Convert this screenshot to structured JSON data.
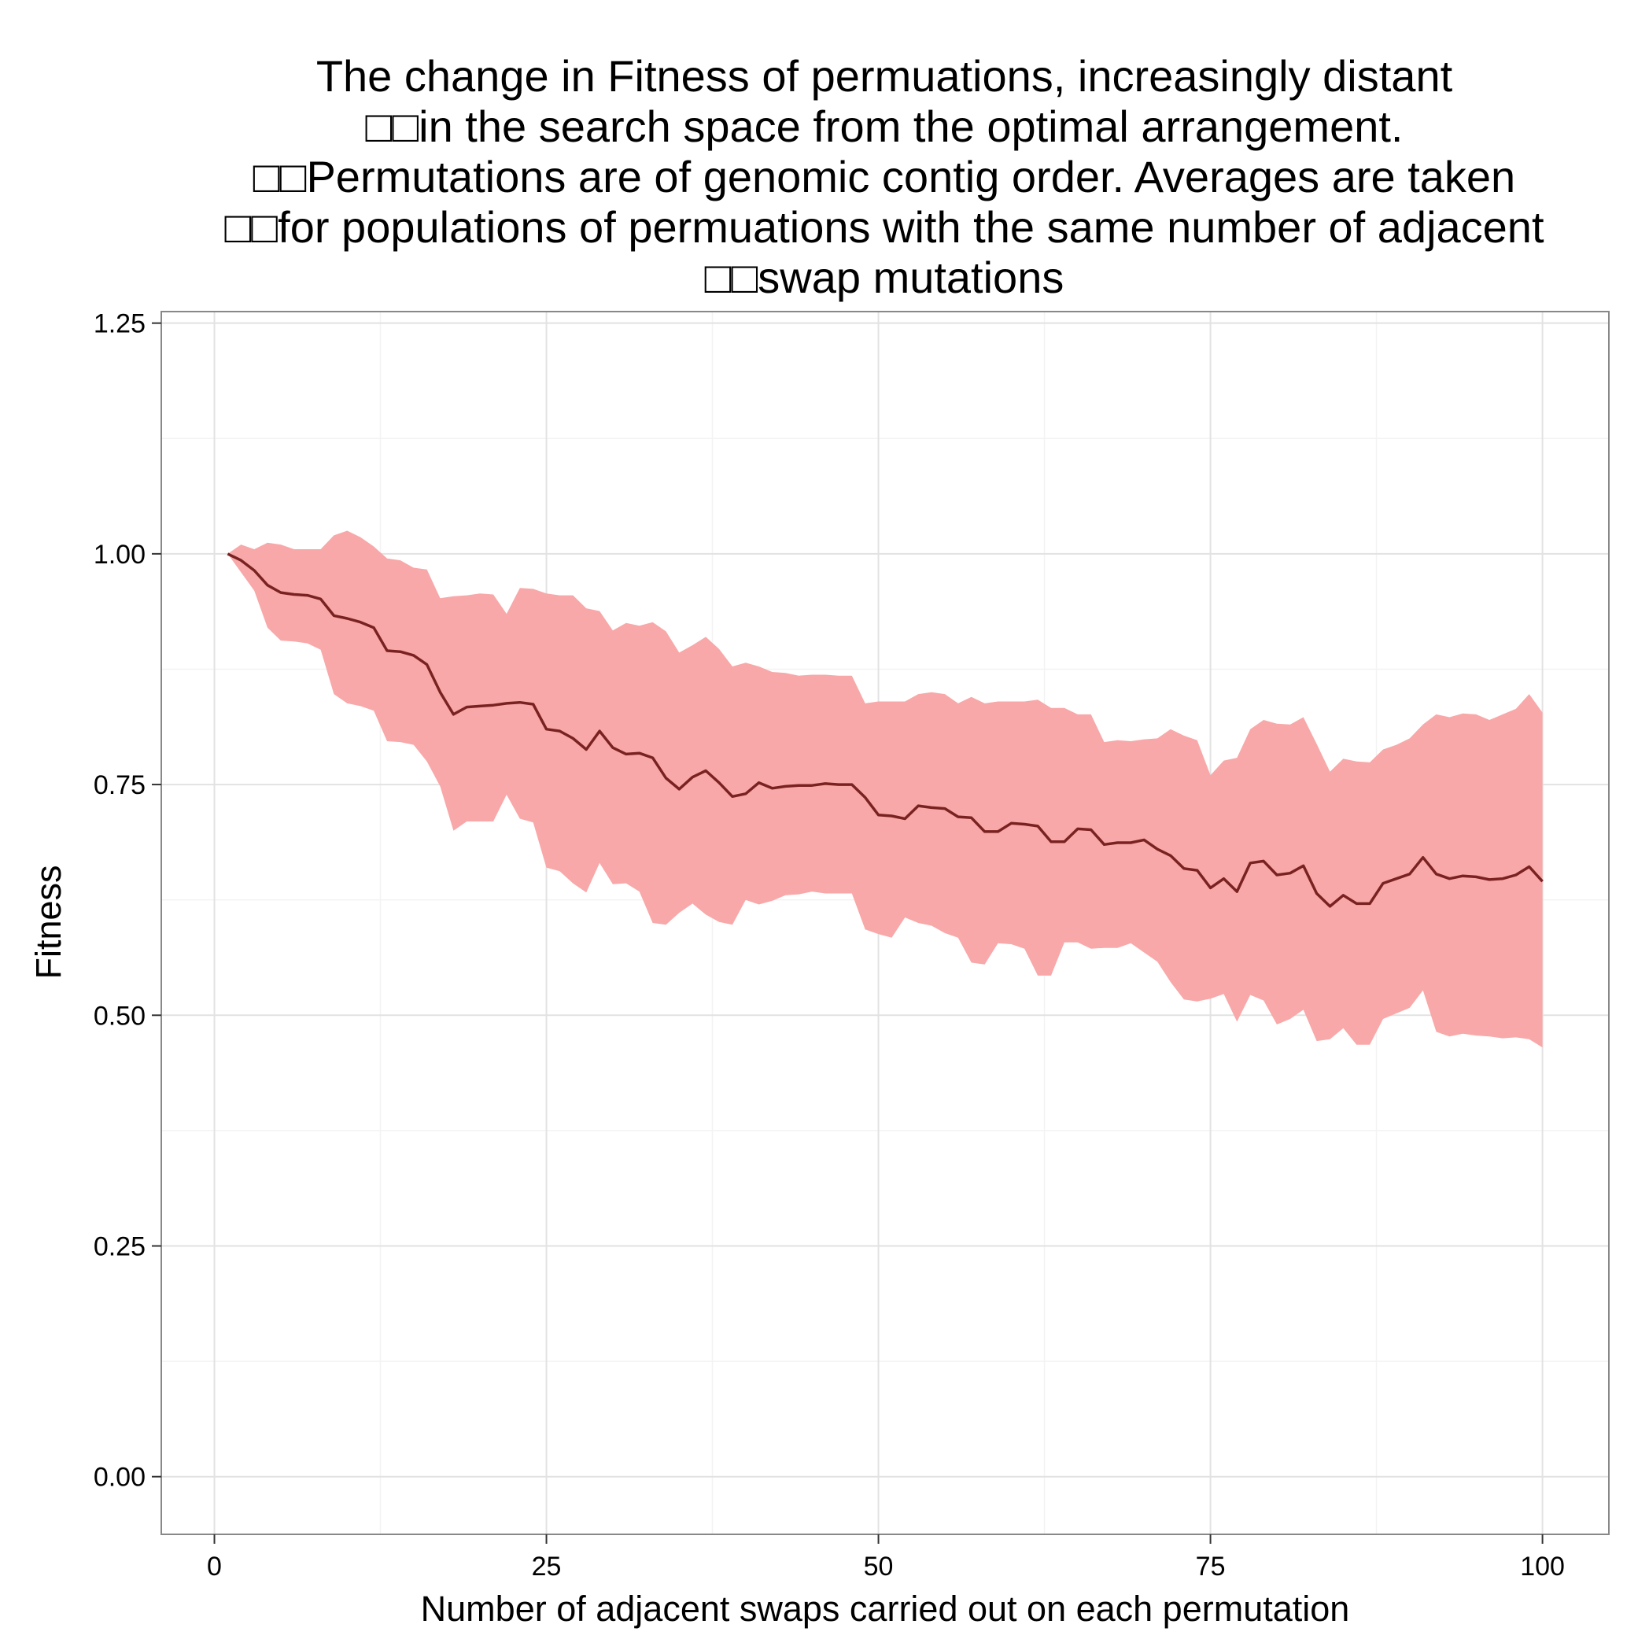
{
  "chart_data": {
    "type": "line",
    "title_lines": [
      "The change in Fitness of permuations, increasingly distant",
      "□□in the search space from the optimal arrangement.",
      "□□Permutations are of genomic contig order. Averages are taken",
      "□□for populations of permuations with the same number of adjacent",
      "□□swap mutations"
    ],
    "xlabel": "Number of adjacent swaps carried out on each permutation",
    "ylabel": "Fitness",
    "xlim": [
      -4,
      105
    ],
    "ylim": [
      -0.0625,
      1.2625
    ],
    "x_ticks": [
      0,
      25,
      50,
      75,
      100
    ],
    "x_tick_labels": [
      "0",
      "25",
      "50",
      "75",
      "100"
    ],
    "y_ticks": [
      0.0,
      0.25,
      0.5,
      0.75,
      1.0,
      1.25
    ],
    "y_tick_labels": [
      "0.00",
      "0.25",
      "0.50",
      "0.75",
      "1.00",
      "1.25"
    ],
    "grid": true,
    "colors": {
      "band": "#f8a8a8",
      "line": "#7a2222",
      "grid_major": "#e2e2e2",
      "grid_minor": "#f3f3f3",
      "panel_border": "#888888"
    },
    "x": [
      1,
      2,
      3,
      4,
      5,
      6,
      7,
      8,
      9,
      10,
      11,
      12,
      13,
      14,
      15,
      16,
      17,
      18,
      19,
      20,
      21,
      22,
      23,
      24,
      25,
      26,
      27,
      28,
      29,
      30,
      31,
      32,
      33,
      34,
      35,
      36,
      37,
      38,
      39,
      40,
      41,
      42,
      43,
      44,
      45,
      46,
      47,
      48,
      49,
      50,
      51,
      52,
      53,
      54,
      55,
      56,
      57,
      58,
      59,
      60,
      61,
      62,
      63,
      64,
      65,
      66,
      67,
      68,
      69,
      70,
      71,
      72,
      73,
      74,
      75,
      76,
      77,
      78,
      79,
      80,
      81,
      82,
      83,
      84,
      85,
      86,
      87,
      88,
      89,
      90,
      91,
      92,
      93,
      94,
      95,
      96,
      97,
      98,
      99,
      100
    ],
    "series": [
      {
        "type": "ribbon",
        "upper": [
          1.0,
          1.01,
          1.005,
          1.012,
          1.01,
          1.005,
          1.005,
          1.005,
          1.02,
          1.025,
          1.018,
          1.008,
          0.995,
          0.993,
          0.985,
          0.983,
          0.952,
          0.954,
          0.955,
          0.957,
          0.956,
          0.935,
          0.963,
          0.962,
          0.957,
          0.955,
          0.955,
          0.941,
          0.938,
          0.917,
          0.925,
          0.922,
          0.926,
          0.916,
          0.893,
          0.901,
          0.91,
          0.897,
          0.878,
          0.882,
          0.878,
          0.872,
          0.871,
          0.868,
          0.869,
          0.869,
          0.868,
          0.868,
          0.838,
          0.84,
          0.84,
          0.84,
          0.848,
          0.85,
          0.848,
          0.838,
          0.845,
          0.838,
          0.84,
          0.84,
          0.84,
          0.842,
          0.833,
          0.833,
          0.826,
          0.826,
          0.796,
          0.798,
          0.797,
          0.799,
          0.8,
          0.81,
          0.803,
          0.798,
          0.76,
          0.776,
          0.779,
          0.81,
          0.82,
          0.816,
          0.815,
          0.823,
          0.794,
          0.764,
          0.778,
          0.775,
          0.774,
          0.788,
          0.793,
          0.8,
          0.815,
          0.826,
          0.823,
          0.827,
          0.826,
          0.82,
          0.826,
          0.832,
          0.848,
          0.828
        ],
        "lower": [
          1.0,
          0.98,
          0.96,
          0.92,
          0.906,
          0.905,
          0.903,
          0.896,
          0.848,
          0.838,
          0.835,
          0.83,
          0.797,
          0.796,
          0.793,
          0.775,
          0.748,
          0.7,
          0.71,
          0.71,
          0.71,
          0.739,
          0.713,
          0.709,
          0.66,
          0.656,
          0.643,
          0.633,
          0.665,
          0.642,
          0.643,
          0.634,
          0.6,
          0.598,
          0.611,
          0.621,
          0.609,
          0.601,
          0.598,
          0.625,
          0.62,
          0.624,
          0.63,
          0.631,
          0.634,
          0.632,
          0.632,
          0.632,
          0.593,
          0.588,
          0.584,
          0.606,
          0.6,
          0.597,
          0.589,
          0.584,
          0.557,
          0.555,
          0.578,
          0.577,
          0.572,
          0.543,
          0.543,
          0.579,
          0.579,
          0.572,
          0.573,
          0.573,
          0.578,
          0.568,
          0.558,
          0.536,
          0.517,
          0.515,
          0.518,
          0.523,
          0.493,
          0.522,
          0.516,
          0.49,
          0.496,
          0.506,
          0.472,
          0.474,
          0.486,
          0.468,
          0.468,
          0.496,
          0.502,
          0.508,
          0.527,
          0.482,
          0.477,
          0.48,
          0.478,
          0.477,
          0.475,
          0.476,
          0.474,
          0.465
        ]
      },
      {
        "type": "line",
        "values": [
          1.0,
          0.993,
          0.982,
          0.966,
          0.958,
          0.956,
          0.955,
          0.951,
          0.933,
          0.93,
          0.926,
          0.92,
          0.895,
          0.894,
          0.89,
          0.88,
          0.85,
          0.826,
          0.834,
          0.835,
          0.836,
          0.838,
          0.839,
          0.837,
          0.81,
          0.808,
          0.8,
          0.788,
          0.808,
          0.79,
          0.783,
          0.784,
          0.779,
          0.757,
          0.745,
          0.758,
          0.765,
          0.752,
          0.737,
          0.74,
          0.752,
          0.746,
          0.748,
          0.749,
          0.749,
          0.751,
          0.75,
          0.75,
          0.736,
          0.717,
          0.716,
          0.713,
          0.727,
          0.725,
          0.724,
          0.715,
          0.714,
          0.699,
          0.699,
          0.708,
          0.707,
          0.705,
          0.688,
          0.688,
          0.702,
          0.701,
          0.685,
          0.687,
          0.687,
          0.69,
          0.68,
          0.673,
          0.659,
          0.657,
          0.638,
          0.648,
          0.634,
          0.665,
          0.667,
          0.652,
          0.654,
          0.662,
          0.632,
          0.618,
          0.63,
          0.621,
          0.621,
          0.643,
          0.648,
          0.653,
          0.671,
          0.653,
          0.648,
          0.651,
          0.65,
          0.647,
          0.648,
          0.652,
          0.661,
          0.645
        ]
      }
    ]
  }
}
